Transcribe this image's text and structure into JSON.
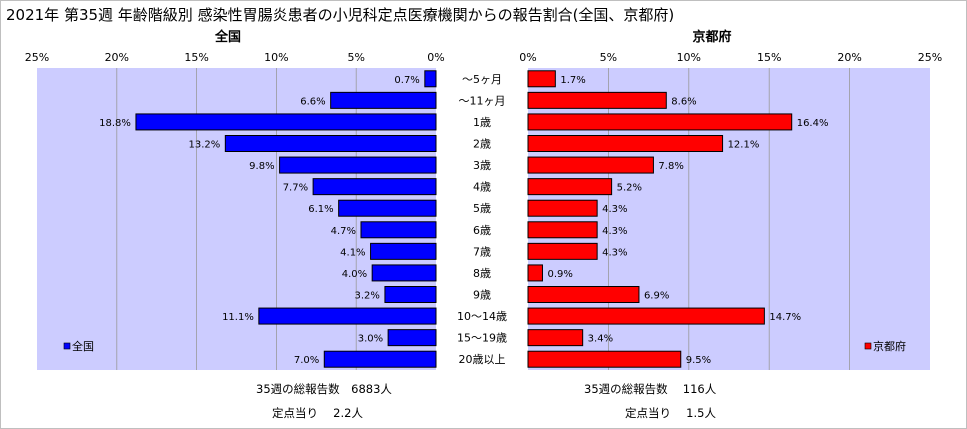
{
  "title": "2021年 第35週 年齢階級別 感染性胃腸炎患者の小児科定点医療機関からの報告割合(全国、京都府)",
  "colors": {
    "national": "#0000ff",
    "kyoto": "#ff0000",
    "plot_bg": "#ccccff",
    "grid": "#999999"
  },
  "chart_data": [
    {
      "type": "bar",
      "orientation": "horizontal",
      "direction": "leftward",
      "title": "全国",
      "legend": "全国",
      "legend_position": "bottom-left",
      "categories": [
        "～5ヶ月",
        "～11ヶ月",
        "1歳",
        "2歳",
        "3歳",
        "4歳",
        "5歳",
        "6歳",
        "7歳",
        "8歳",
        "9歳",
        "10～14歳",
        "15～19歳",
        "20歳以上"
      ],
      "values": [
        0.7,
        6.6,
        18.8,
        13.2,
        9.8,
        7.7,
        6.1,
        4.7,
        4.1,
        4.0,
        3.2,
        11.1,
        3.0,
        7.0
      ],
      "value_labels": [
        "0.7%",
        "6.6%",
        "18.8%",
        "13.2%",
        "9.8%",
        "7.7%",
        "6.1%",
        "4.7%",
        "4.1%",
        "4.0%",
        "3.2%",
        "11.1%",
        "3.0%",
        "7.0%"
      ],
      "xlim": [
        0,
        25
      ],
      "ticks": [
        "0%",
        "5%",
        "10%",
        "15%",
        "20%",
        "25%"
      ],
      "grid": true
    },
    {
      "type": "bar",
      "orientation": "horizontal",
      "direction": "rightward",
      "title": "京都府",
      "legend": "京都府",
      "legend_position": "bottom-right",
      "categories": [
        "～5ヶ月",
        "～11ヶ月",
        "1歳",
        "2歳",
        "3歳",
        "4歳",
        "5歳",
        "6歳",
        "7歳",
        "8歳",
        "9歳",
        "10～14歳",
        "15～19歳",
        "20歳以上"
      ],
      "values": [
        1.7,
        8.6,
        16.4,
        12.1,
        7.8,
        5.2,
        4.3,
        4.3,
        4.3,
        0.9,
        6.9,
        14.7,
        3.4,
        9.5
      ],
      "value_labels": [
        "1.7%",
        "8.6%",
        "16.4%",
        "12.1%",
        "7.8%",
        "5.2%",
        "4.3%",
        "4.3%",
        "4.3%",
        "0.9%",
        "6.9%",
        "14.7%",
        "3.4%",
        "9.5%"
      ],
      "xlim": [
        0,
        25
      ],
      "ticks": [
        "0%",
        "5%",
        "10%",
        "15%",
        "20%",
        "25%"
      ],
      "grid": true
    }
  ],
  "footer": {
    "national_total": "35週の総報告数　6883人",
    "national_per_site": "定点当り　 2.2人",
    "kyoto_total": "35週の総報告数　 116人",
    "kyoto_per_site": "定点当り　 1.5人"
  }
}
